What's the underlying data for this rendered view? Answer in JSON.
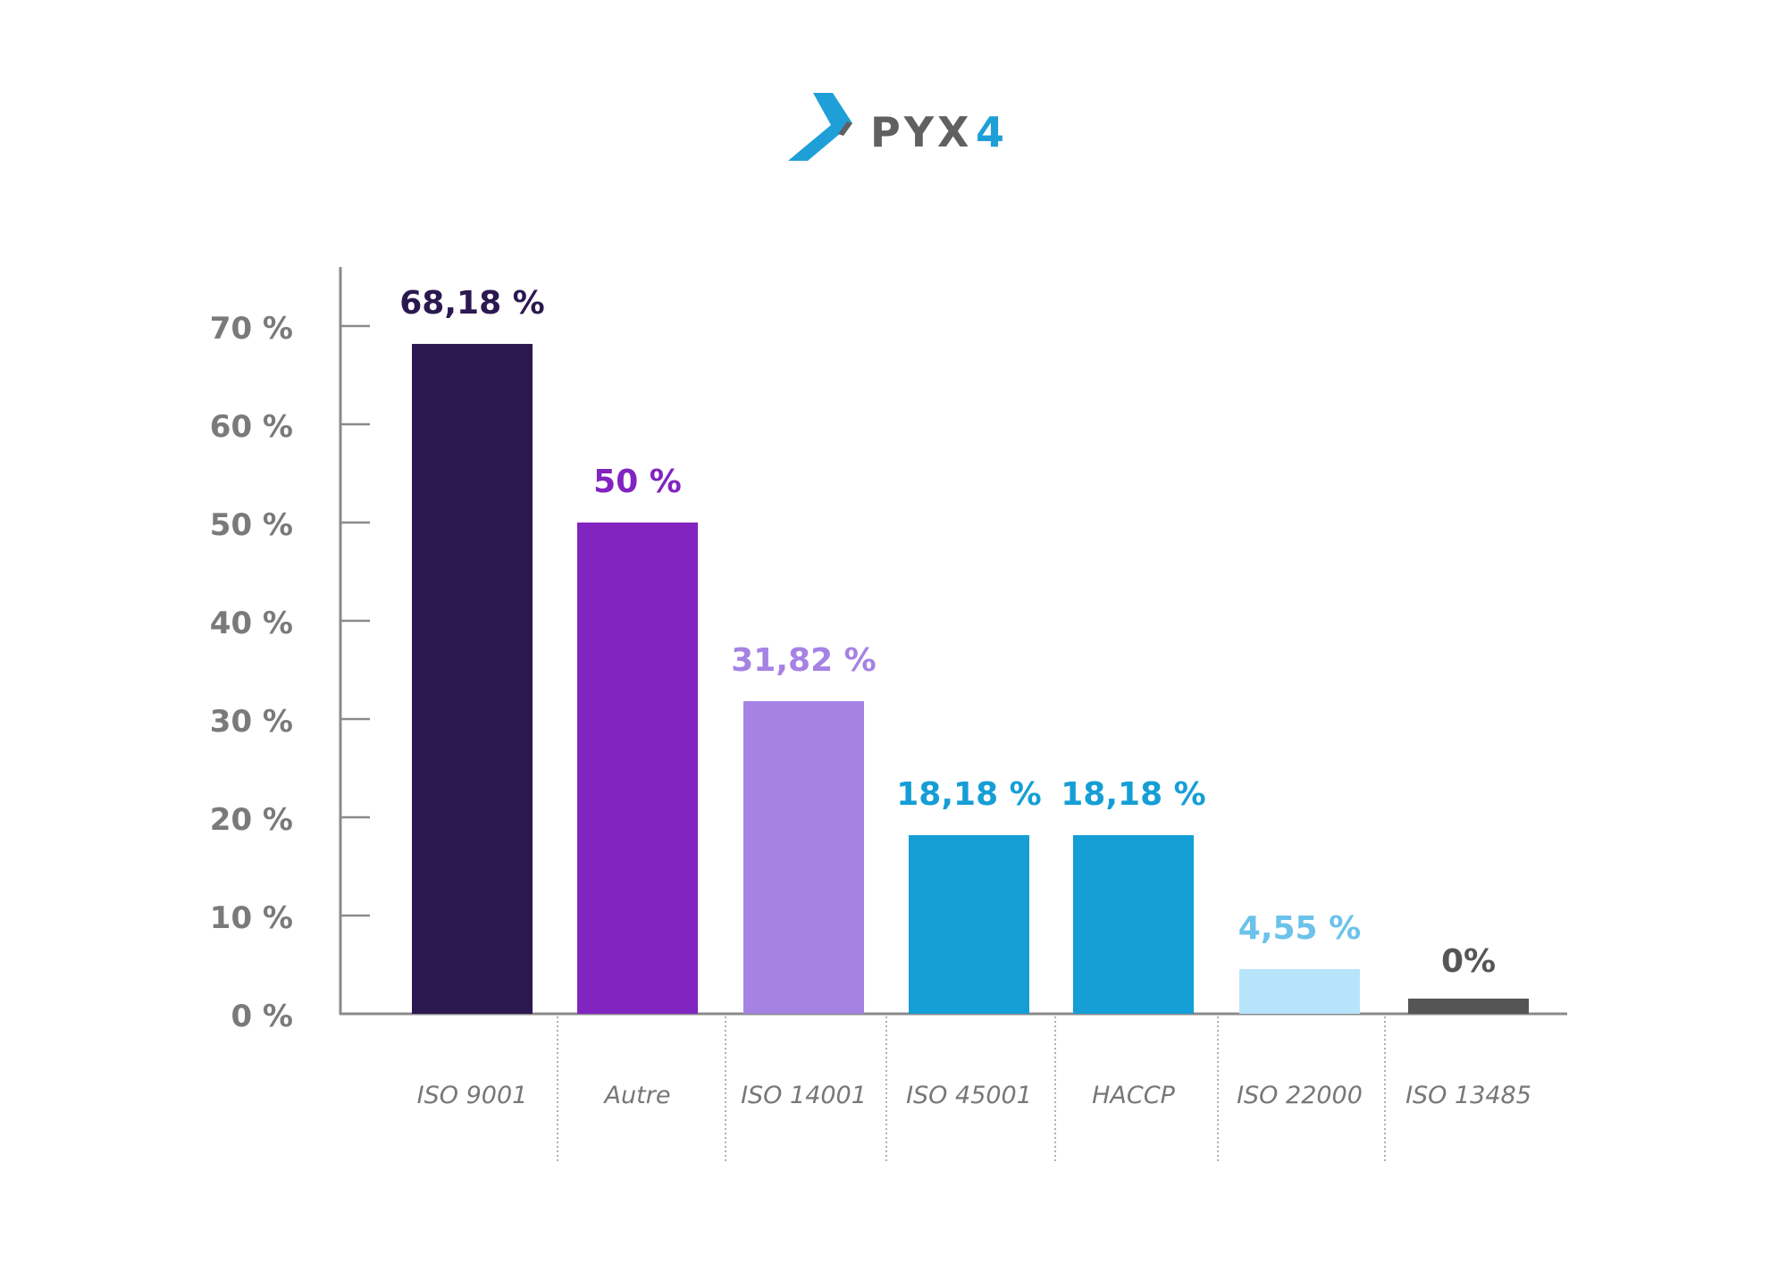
{
  "logo": {
    "text": "PYX4",
    "accent": "#1e9fd8",
    "gray": "#606060"
  },
  "chart_data": {
    "type": "bar",
    "categories": [
      "ISO 9001",
      "Autre",
      "ISO 14001",
      "ISO 45001",
      "HACCP",
      "ISO 22000",
      "ISO 13485"
    ],
    "values": [
      68.18,
      50,
      31.82,
      18.18,
      18.18,
      4.55,
      0
    ],
    "value_labels": [
      "68,18 %",
      "50 %",
      "31,82 %",
      "18,18 %",
      "18,18 %",
      "4,55 %",
      "0%"
    ],
    "bar_colors": [
      "#2c1850",
      "#8224c0",
      "#a582e3",
      "#159ed6",
      "#159ed6",
      "#b7e4fb",
      "#555555"
    ],
    "label_colors": [
      "#2c1850",
      "#8224c0",
      "#a582e3",
      "#159ed6",
      "#159ed6",
      "#6cc2ea",
      "#555555"
    ],
    "yticks": [
      0,
      10,
      20,
      30,
      40,
      50,
      60,
      70
    ],
    "ytick_labels": [
      "0 %",
      "10 %",
      "20 %",
      "30 %",
      "40 %",
      "50 %",
      "60 %",
      "70 %"
    ],
    "ylim": [
      0,
      70
    ],
    "title": "",
    "xlabel": "",
    "ylabel": "",
    "grid": false
  }
}
